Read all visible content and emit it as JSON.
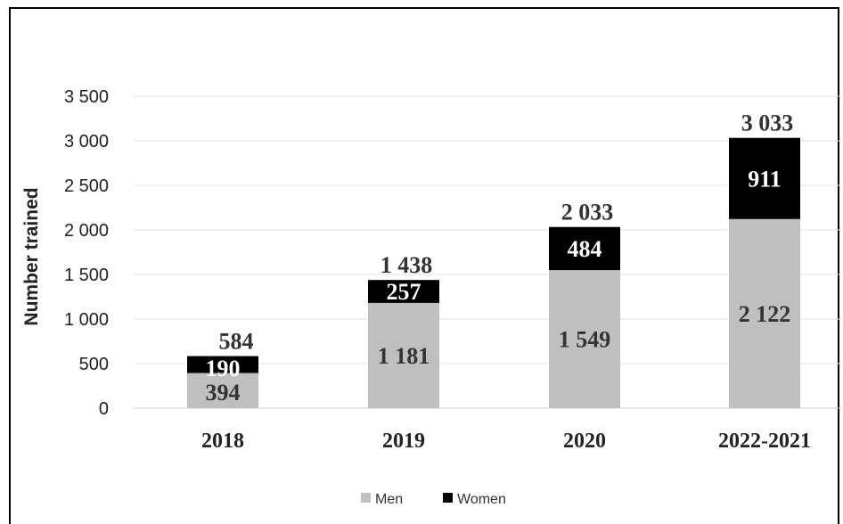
{
  "chart_data": {
    "type": "bar",
    "stacked": true,
    "categories": [
      "2018",
      "2019",
      "2020",
      "2022-2021"
    ],
    "series": [
      {
        "name": "Men",
        "values": [
          394,
          1181,
          1549,
          2122
        ],
        "labels": [
          "394",
          "1 181",
          "1 549",
          "2 122"
        ],
        "color": "#bfbfbf"
      },
      {
        "name": "Women",
        "values": [
          190,
          257,
          484,
          911
        ],
        "labels": [
          "190",
          "257",
          "484",
          "911"
        ],
        "color": "#000000"
      }
    ],
    "totals": [
      "584",
      "1 438",
      "2 033",
      "3 033"
    ],
    "ylabel": "Number trained",
    "ylim": [
      0,
      3500
    ],
    "yticks": [
      {
        "value": 0,
        "label": "0"
      },
      {
        "value": 500,
        "label": "500"
      },
      {
        "value": 1000,
        "label": "1 000"
      },
      {
        "value": 1500,
        "label": "1 500"
      },
      {
        "value": 2000,
        "label": "2 000"
      },
      {
        "value": 2500,
        "label": "2 500"
      },
      {
        "value": 3000,
        "label": "3 000"
      },
      {
        "value": 3500,
        "label": "3 500"
      }
    ],
    "grid": true,
    "legend_position": "bottom"
  }
}
